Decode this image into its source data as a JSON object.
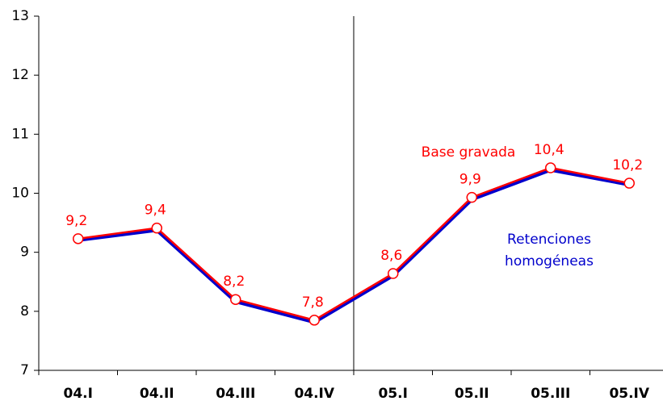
{
  "chart_data": {
    "type": "line",
    "categories": [
      "04.I",
      "04.II",
      "04.III",
      "04.IV",
      "05.I",
      "05.II",
      "05.III",
      "05.IV"
    ],
    "series": [
      {
        "name": "Base gravada",
        "color": "#ff0000",
        "values": [
          9.23,
          9.41,
          8.2,
          7.85,
          8.64,
          9.93,
          10.43,
          10.17
        ],
        "value_labels": [
          "9,2",
          "9,4",
          "8,2",
          "7,8",
          "8,6",
          "9,9",
          "10,4",
          "10,2"
        ]
      },
      {
        "name": "Retenciones homogéneas",
        "color": "#0000cc",
        "values": [
          9.21,
          9.38,
          8.17,
          7.82,
          8.61,
          9.9,
          10.4,
          10.15
        ]
      }
    ],
    "ylim": [
      7,
      13
    ],
    "yticks": [
      7,
      8,
      9,
      10,
      11,
      12,
      13
    ]
  }
}
